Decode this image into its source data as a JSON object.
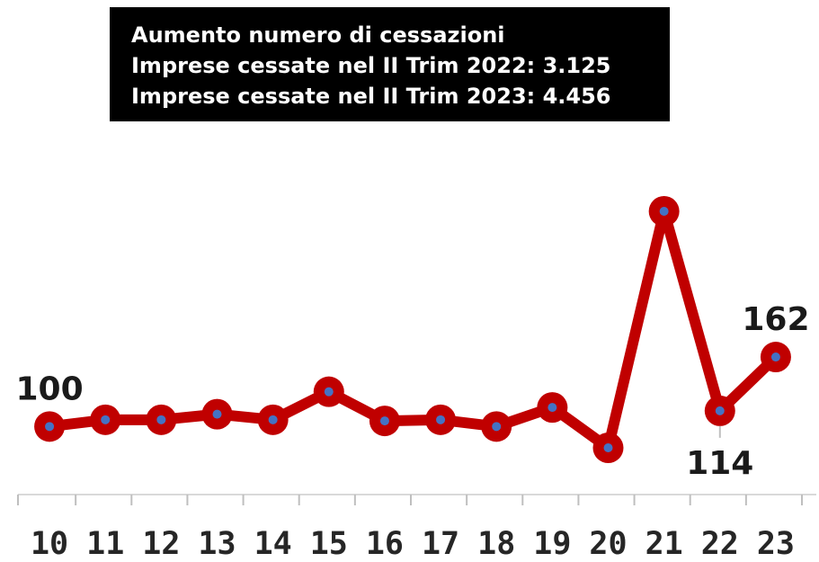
{
  "chart_data": {
    "type": "line",
    "title": [
      "Aumento numero di cessazioni",
      "Imprese cessate nel II Trim 2022: 3.125",
      "Imprese cessate nel II Trim 2023: 4.456"
    ],
    "categories": [
      "10",
      "11",
      "12",
      "13",
      "14",
      "15",
      "16",
      "17",
      "18",
      "19",
      "20",
      "21",
      "22",
      "23"
    ],
    "series": [
      {
        "name": null,
        "color": "#c00000",
        "marker_color": "#4472c4",
        "values": [
          100,
          106,
          106,
          111,
          106,
          131,
          105,
          106,
          100,
          117,
          81,
          292,
          114,
          162
        ],
        "value_labels": [
          "100",
          null,
          null,
          null,
          null,
          null,
          null,
          null,
          null,
          null,
          null,
          null,
          "114",
          "162"
        ]
      }
    ]
  }
}
